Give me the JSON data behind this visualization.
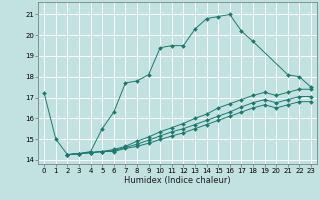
{
  "xlabel": "Humidex (Indice chaleur)",
  "xlim": [
    -0.5,
    23.5
  ],
  "ylim": [
    13.8,
    21.6
  ],
  "yticks": [
    14,
    15,
    16,
    17,
    18,
    19,
    20,
    21
  ],
  "xticks": [
    0,
    1,
    2,
    3,
    4,
    5,
    6,
    7,
    8,
    9,
    10,
    11,
    12,
    13,
    14,
    15,
    16,
    17,
    18,
    19,
    20,
    21,
    22,
    23
  ],
  "bg_color": "#c2e2e2",
  "grid_color": "#b0d4d4",
  "line_color": "#1a7a6e",
  "line1_x": [
    0,
    1,
    2,
    3,
    4,
    5,
    6,
    7,
    8,
    9,
    10,
    11,
    12,
    13,
    14,
    15,
    16,
    17,
    18,
    21,
    22,
    23
  ],
  "line1_y": [
    17.2,
    15.0,
    14.25,
    14.3,
    14.4,
    15.5,
    16.3,
    17.7,
    17.8,
    18.1,
    19.4,
    19.5,
    19.5,
    20.3,
    20.8,
    20.9,
    21.0,
    20.2,
    19.7,
    18.1,
    18.0,
    17.5
  ],
  "line2_x": [
    2,
    3,
    4,
    5,
    6,
    7,
    8,
    9,
    10,
    11,
    12,
    13,
    14,
    15,
    16,
    17,
    18,
    19,
    20,
    21,
    22,
    23
  ],
  "line2_y": [
    14.25,
    14.3,
    14.35,
    14.4,
    14.5,
    14.65,
    14.9,
    15.1,
    15.35,
    15.55,
    15.75,
    16.0,
    16.2,
    16.5,
    16.7,
    16.9,
    17.1,
    17.25,
    17.1,
    17.25,
    17.4,
    17.4
  ],
  "line3_x": [
    2,
    3,
    4,
    5,
    6,
    7,
    8,
    9,
    10,
    11,
    12,
    13,
    14,
    15,
    16,
    17,
    18,
    19,
    20,
    21,
    22,
    23
  ],
  "line3_y": [
    14.25,
    14.3,
    14.35,
    14.4,
    14.45,
    14.6,
    14.75,
    14.95,
    15.15,
    15.35,
    15.5,
    15.7,
    15.9,
    16.1,
    16.3,
    16.55,
    16.75,
    16.9,
    16.75,
    16.9,
    17.05,
    17.05
  ],
  "line4_x": [
    2,
    3,
    4,
    5,
    6,
    7,
    8,
    9,
    10,
    11,
    12,
    13,
    14,
    15,
    16,
    17,
    18,
    19,
    20,
    21,
    22,
    23
  ],
  "line4_y": [
    14.25,
    14.3,
    14.35,
    14.4,
    14.4,
    14.55,
    14.65,
    14.8,
    14.98,
    15.15,
    15.3,
    15.5,
    15.7,
    15.9,
    16.1,
    16.3,
    16.5,
    16.65,
    16.5,
    16.65,
    16.8,
    16.8
  ]
}
